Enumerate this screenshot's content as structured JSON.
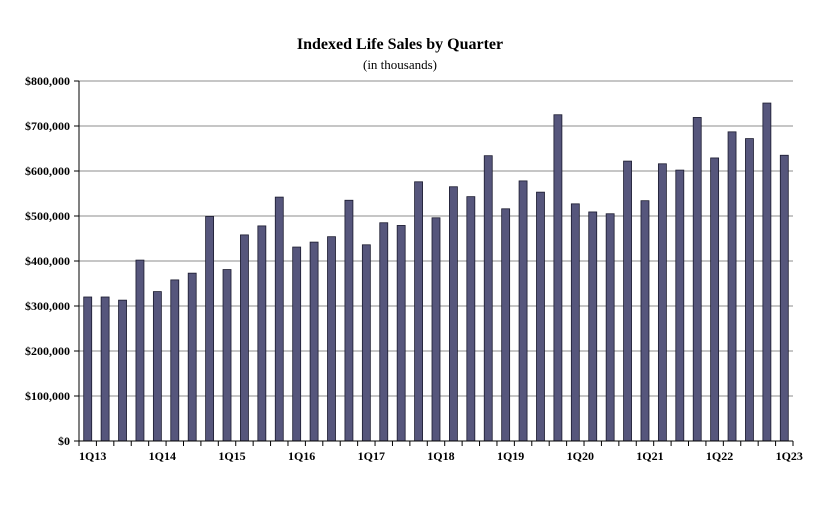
{
  "chart_data": {
    "type": "bar",
    "title": "Indexed Life Sales by Quarter",
    "subtitle": "(in thousands)",
    "xlabel": "",
    "ylabel": "",
    "ylim": [
      0,
      800000
    ],
    "yticks": [
      0,
      100000,
      200000,
      300000,
      400000,
      500000,
      600000,
      700000,
      800000
    ],
    "ytick_labels": [
      "$0",
      "$100,000",
      "$200,000",
      "$300,000",
      "$400,000",
      "$500,000",
      "$600,000",
      "$700,000",
      "$800,000"
    ],
    "grid": true,
    "legend": "none",
    "bar_color": "#56567c",
    "grid_color": "#8c8c8c",
    "categories": [
      "1Q13",
      "2Q13",
      "3Q13",
      "4Q13",
      "1Q14",
      "2Q14",
      "3Q14",
      "4Q14",
      "1Q15",
      "2Q15",
      "3Q15",
      "4Q15",
      "1Q16",
      "2Q16",
      "3Q16",
      "4Q16",
      "1Q17",
      "2Q17",
      "3Q17",
      "4Q17",
      "1Q18",
      "2Q18",
      "3Q18",
      "4Q18",
      "1Q19",
      "2Q19",
      "3Q19",
      "4Q19",
      "1Q20",
      "2Q20",
      "3Q20",
      "4Q20",
      "1Q21",
      "2Q21",
      "3Q21",
      "4Q21",
      "1Q22",
      "2Q22",
      "3Q22",
      "4Q22",
      "1Q23"
    ],
    "xtick_labels": [
      "1Q13",
      "1Q14",
      "1Q15",
      "1Q16",
      "1Q17",
      "1Q18",
      "1Q19",
      "1Q20",
      "1Q21",
      "1Q22",
      "1Q23"
    ],
    "values": [
      320000,
      320000,
      313000,
      402000,
      332000,
      358000,
      373000,
      499000,
      381000,
      458000,
      478000,
      542000,
      431000,
      442000,
      454000,
      535000,
      436000,
      485000,
      479000,
      576000,
      496000,
      565000,
      543000,
      634000,
      516000,
      578000,
      553000,
      725000,
      527000,
      509000,
      505000,
      622000,
      534000,
      616000,
      602000,
      719000,
      629000,
      687000,
      672000,
      751000,
      635000
    ]
  }
}
